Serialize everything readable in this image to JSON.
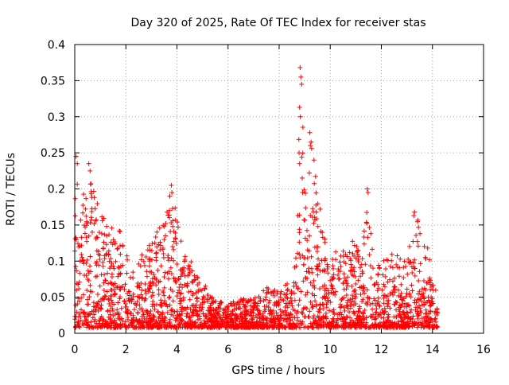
{
  "chart_data": {
    "type": "scatter",
    "title": "Day 320 of 2025, Rate Of TEC Index for receiver stas",
    "xlabel": "GPS time / hours",
    "ylabel": "ROTI / TECUs",
    "xlim": [
      0,
      16
    ],
    "ylim": [
      0,
      0.4
    ],
    "xticks": [
      0,
      2,
      4,
      6,
      8,
      10,
      12,
      14,
      16
    ],
    "yticks": [
      0,
      0.05,
      0.1,
      0.15,
      0.2,
      0.25,
      0.3,
      0.35,
      0.4
    ],
    "xtick_labels": [
      "0",
      "2",
      "4",
      "6",
      "8",
      "10",
      "12",
      "14",
      "16"
    ],
    "ytick_labels": [
      "0",
      "0.05",
      "0.1",
      "0.15",
      "0.2",
      "0.25",
      "0.3",
      "0.35",
      "0.4"
    ],
    "grid": true,
    "marker": "+",
    "series": [
      {
        "name": "ROTI",
        "color": "#ff0000",
        "x_range": [
          0.0,
          14.2
        ],
        "envelope": [
          {
            "x": 0.0,
            "y": 0.24
          },
          {
            "x": 0.3,
            "y": 0.2
          },
          {
            "x": 0.6,
            "y": 0.23
          },
          {
            "x": 1.0,
            "y": 0.17
          },
          {
            "x": 1.4,
            "y": 0.15
          },
          {
            "x": 1.8,
            "y": 0.16
          },
          {
            "x": 2.2,
            "y": 0.09
          },
          {
            "x": 2.6,
            "y": 0.11
          },
          {
            "x": 3.0,
            "y": 0.13
          },
          {
            "x": 3.4,
            "y": 0.15
          },
          {
            "x": 3.8,
            "y": 0.2
          },
          {
            "x": 4.2,
            "y": 0.13
          },
          {
            "x": 4.6,
            "y": 0.1
          },
          {
            "x": 5.0,
            "y": 0.07
          },
          {
            "x": 5.5,
            "y": 0.05
          },
          {
            "x": 6.0,
            "y": 0.04
          },
          {
            "x": 6.5,
            "y": 0.05
          },
          {
            "x": 7.0,
            "y": 0.05
          },
          {
            "x": 7.4,
            "y": 0.065
          },
          {
            "x": 7.8,
            "y": 0.06
          },
          {
            "x": 8.2,
            "y": 0.065
          },
          {
            "x": 8.6,
            "y": 0.09
          },
          {
            "x": 8.85,
            "y": 0.37
          },
          {
            "x": 9.1,
            "y": 0.14
          },
          {
            "x": 9.3,
            "y": 0.28
          },
          {
            "x": 9.6,
            "y": 0.17
          },
          {
            "x": 10.0,
            "y": 0.1
          },
          {
            "x": 10.4,
            "y": 0.13
          },
          {
            "x": 10.8,
            "y": 0.13
          },
          {
            "x": 11.2,
            "y": 0.12
          },
          {
            "x": 11.45,
            "y": 0.2
          },
          {
            "x": 11.8,
            "y": 0.11
          },
          {
            "x": 12.2,
            "y": 0.11
          },
          {
            "x": 12.6,
            "y": 0.11
          },
          {
            "x": 13.0,
            "y": 0.1
          },
          {
            "x": 13.3,
            "y": 0.17
          },
          {
            "x": 13.7,
            "y": 0.15
          },
          {
            "x": 14.0,
            "y": 0.08
          },
          {
            "x": 14.2,
            "y": 0.05
          }
        ],
        "spikes": [
          {
            "x": 0.05,
            "y": 0.245
          },
          {
            "x": 0.1,
            "y": 0.235
          },
          {
            "x": 0.55,
            "y": 0.235
          },
          {
            "x": 0.6,
            "y": 0.225
          },
          {
            "x": 3.78,
            "y": 0.205
          },
          {
            "x": 3.72,
            "y": 0.19
          },
          {
            "x": 8.82,
            "y": 0.368
          },
          {
            "x": 8.85,
            "y": 0.355
          },
          {
            "x": 8.88,
            "y": 0.345
          },
          {
            "x": 8.8,
            "y": 0.313
          },
          {
            "x": 8.83,
            "y": 0.3
          },
          {
            "x": 8.78,
            "y": 0.25
          },
          {
            "x": 8.8,
            "y": 0.235
          },
          {
            "x": 8.9,
            "y": 0.215
          },
          {
            "x": 8.92,
            "y": 0.195
          },
          {
            "x": 9.2,
            "y": 0.278
          },
          {
            "x": 9.25,
            "y": 0.265
          },
          {
            "x": 9.22,
            "y": 0.26
          },
          {
            "x": 9.18,
            "y": 0.222
          },
          {
            "x": 11.45,
            "y": 0.2
          },
          {
            "x": 11.48,
            "y": 0.195
          },
          {
            "x": 13.3,
            "y": 0.168
          },
          {
            "x": 9.6,
            "y": 0.172
          },
          {
            "x": 9.45,
            "y": 0.168
          }
        ]
      }
    ]
  }
}
